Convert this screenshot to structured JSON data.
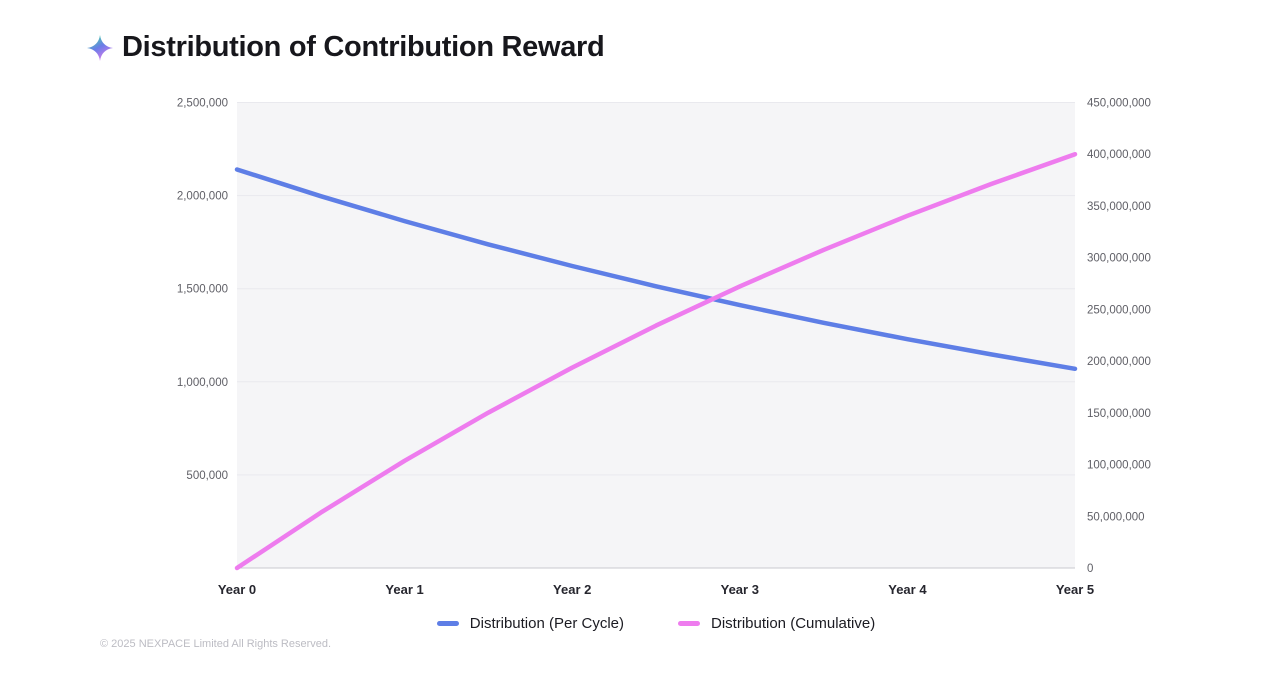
{
  "header": {
    "title": "Distribution of Contribution Reward",
    "icon": "sparkle-icon"
  },
  "chart_data": {
    "type": "line",
    "title": "Distribution of Contribution Reward",
    "x_labels": [
      "Year 0",
      "Year 1",
      "Year 2",
      "Year 3",
      "Year 4",
      "Year 5"
    ],
    "x_tick_positions": [
      0,
      1,
      2,
      3,
      4,
      5
    ],
    "x_range": [
      0,
      5
    ],
    "x": [
      0,
      0.5,
      1,
      1.5,
      2,
      2.5,
      3,
      3.5,
      4,
      4.5,
      5
    ],
    "series": [
      {
        "name": "Distribution (Per Cycle)",
        "axis": "left",
        "color": "#5e7ee6",
        "values": [
          2140000,
          1997000,
          1863000,
          1738000,
          1622000,
          1513000,
          1412000,
          1317000,
          1229000,
          1147000,
          1070000
        ]
      },
      {
        "name": "Distribution (Cumulative)",
        "axis": "right",
        "color": "#ee7cee",
        "values": [
          0,
          53600000,
          103600000,
          150200000,
          193700000,
          234300000,
          272200000,
          307500000,
          340500000,
          371200000,
          400000000
        ]
      }
    ],
    "left_axis": {
      "min": 0,
      "max": 2500000,
      "ticks": [
        500000,
        1000000,
        1500000,
        2000000,
        2500000
      ]
    },
    "right_axis": {
      "min": 0,
      "max": 450000000,
      "ticks": [
        0,
        50000000,
        100000000,
        150000000,
        200000000,
        250000000,
        300000000,
        350000000,
        400000000,
        450000000
      ]
    },
    "grid": "horizontal",
    "legend_position": "bottom",
    "plot_bg": "#f5f5f7",
    "grid_color": "#e9e9ee",
    "axis_line_color": "#c9c9cf"
  },
  "legend": {
    "items": [
      {
        "label": "Distribution (Per Cycle)",
        "color": "#5e7ee6"
      },
      {
        "label": "Distribution (Cumulative)",
        "color": "#ee7cee"
      }
    ]
  },
  "footer": {
    "copyright": "© 2025 NEXPACE Limited All Rights Reserved."
  }
}
